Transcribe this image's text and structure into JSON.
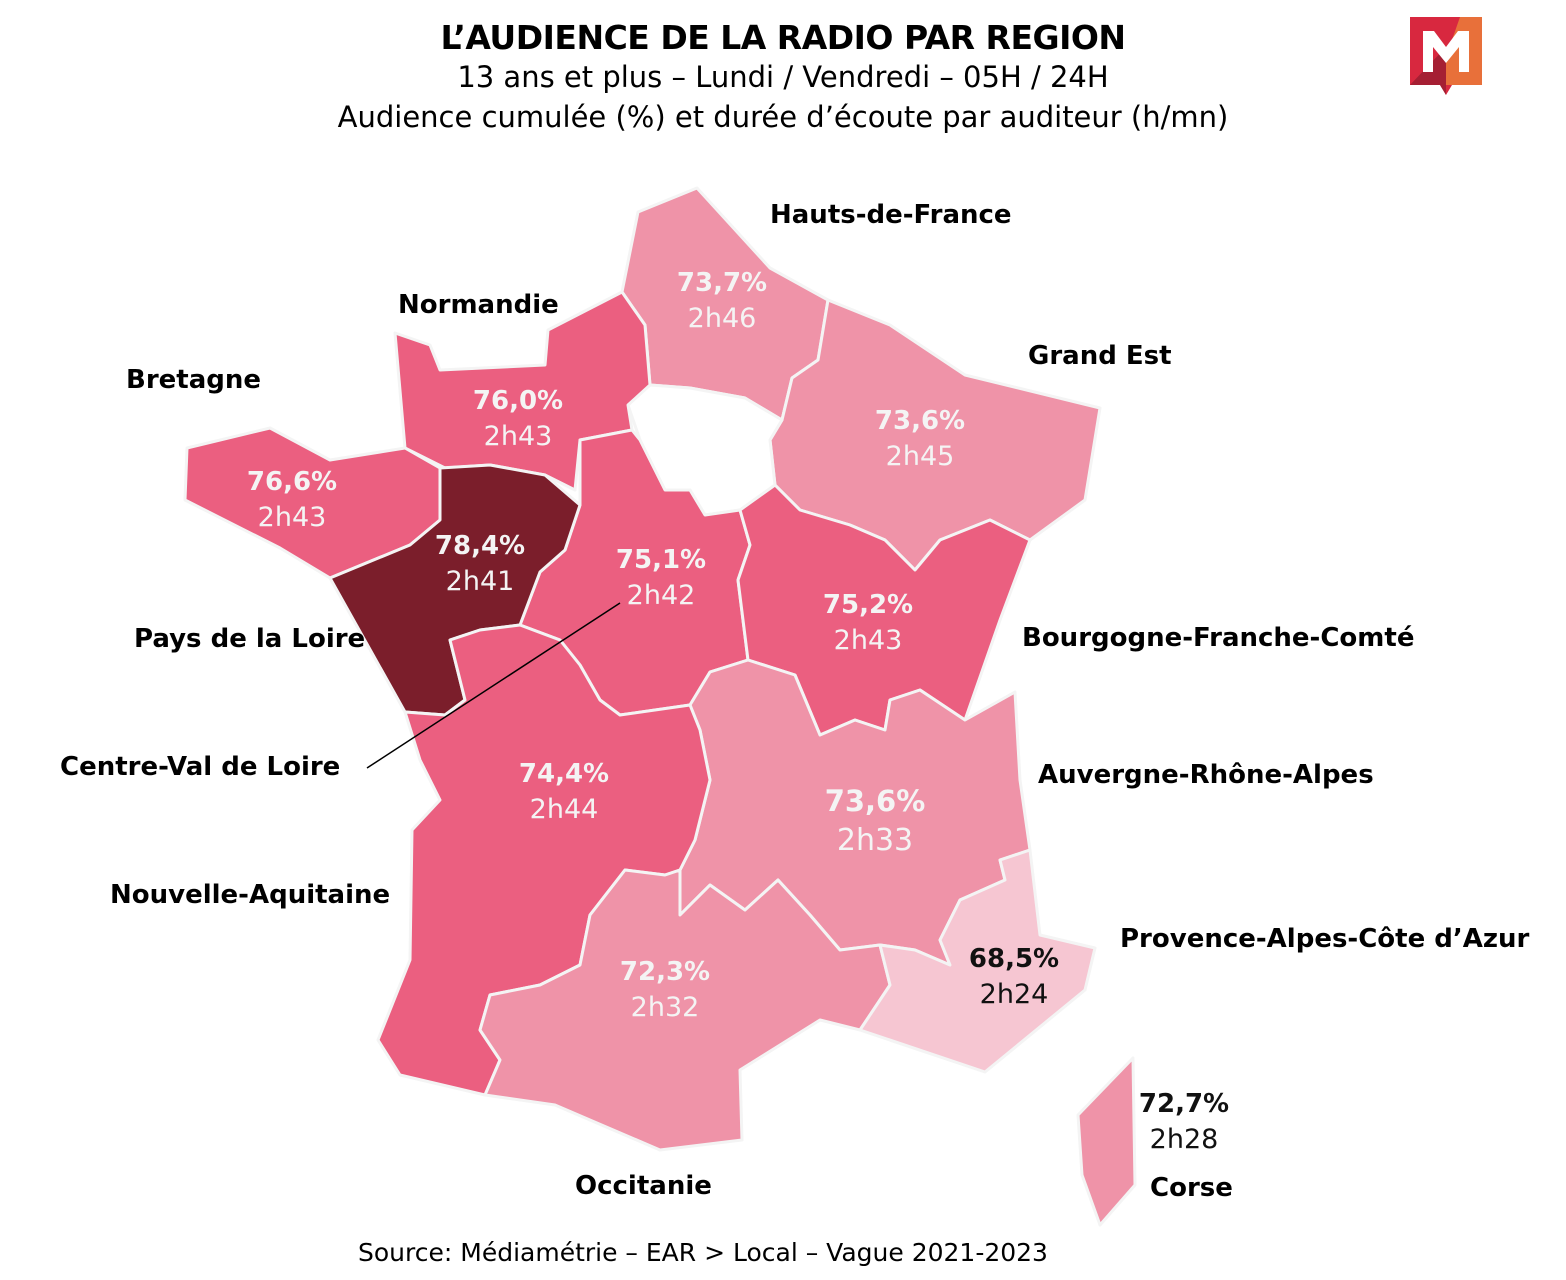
{
  "header": {
    "title": "L’AUDIENCE DE LA RADIO PAR REGION",
    "subtitle1": "13 ans et plus – Lundi / Vendredi – 05H / 24H",
    "subtitle2": "Audience cumulée (%) et durée d’écoute par auditeur (h/mn)"
  },
  "logo": {
    "text": "M",
    "colors": [
      "#d8283f",
      "#e8703a",
      "#a51f33"
    ]
  },
  "source": "Source: Médiamétrie – EAR > Local – Vague 2021-2023",
  "regions": {
    "hdf": {
      "name": "Hauts-de-France",
      "audience": "73,7%",
      "duration": "2h46",
      "color": "#ef93a8"
    },
    "ge": {
      "name": "Grand Est",
      "audience": "73,6%",
      "duration": "2h45",
      "color": "#ef93a8"
    },
    "nor": {
      "name": "Normandie",
      "audience": "76,0%",
      "duration": "2h43",
      "color": "#eb5f80"
    },
    "bre": {
      "name": "Bretagne",
      "audience": "76,6%",
      "duration": "2h43",
      "color": "#eb5f80"
    },
    "pdl": {
      "name": "Pays de la Loire",
      "audience": "78,4%",
      "duration": "2h41",
      "color": "#7b1e2b"
    },
    "cvl": {
      "name": "Centre-Val de Loire",
      "audience": "75,1%",
      "duration": "2h42",
      "color": "#eb5f80"
    },
    "bfc": {
      "name": "Bourgogne-Franche-Comté",
      "audience": "75,2%",
      "duration": "2h43",
      "color": "#eb5f80"
    },
    "ara": {
      "name": "Auvergne-Rhône-Alpes",
      "audience": "73,6%",
      "duration": "2h33",
      "color": "#ef93a8"
    },
    "naq": {
      "name": "Nouvelle-Aquitaine",
      "audience": "74,4%",
      "duration": "2h44",
      "color": "#eb5f80"
    },
    "occ": {
      "name": "Occitanie",
      "audience": "72,3%",
      "duration": "2h32",
      "color": "#ef93a8"
    },
    "paca": {
      "name": "Provence-Alpes-Côte d’Azur",
      "audience": "68,5%",
      "duration": "2h24",
      "color": "#f6c6d2"
    },
    "cor": {
      "name": "Corse",
      "audience": "72,7%",
      "duration": "2h28",
      "color": "#ef93a8"
    },
    "idf": {
      "color": "#ffffff"
    }
  }
}
